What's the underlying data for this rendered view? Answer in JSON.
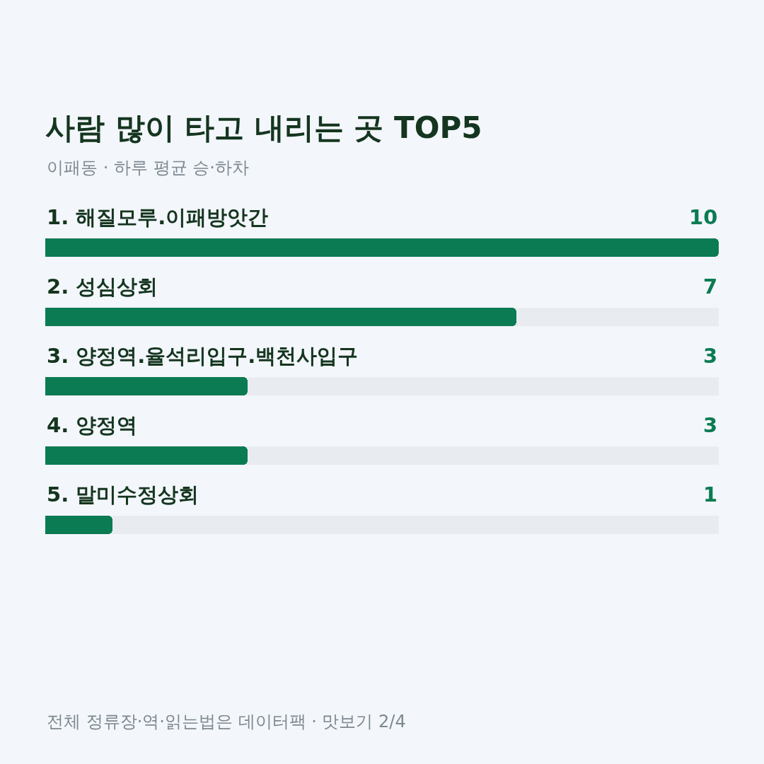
{
  "chart_data": {
    "type": "bar",
    "orientation": "horizontal",
    "title": "사람 많이 타고 내리는 곳 TOP5",
    "subtitle": "이패동 · 하루 평균 승·하차",
    "categories": [
      "1. 해질모루.이패방앗간",
      "2. 성심상회",
      "3. 양정역.율석리입구.백천사입구",
      "4. 양정역",
      "5. 말미수정상회"
    ],
    "values": [
      10,
      7,
      3,
      3,
      1
    ],
    "color": "#0b7b53",
    "xlim": [
      0,
      10
    ],
    "data_labels": true,
    "tick_labels": false,
    "annotations": [
      "전체 정류장·역·읽는법은 데이터팩 · 맛보기 2/4"
    ]
  }
}
